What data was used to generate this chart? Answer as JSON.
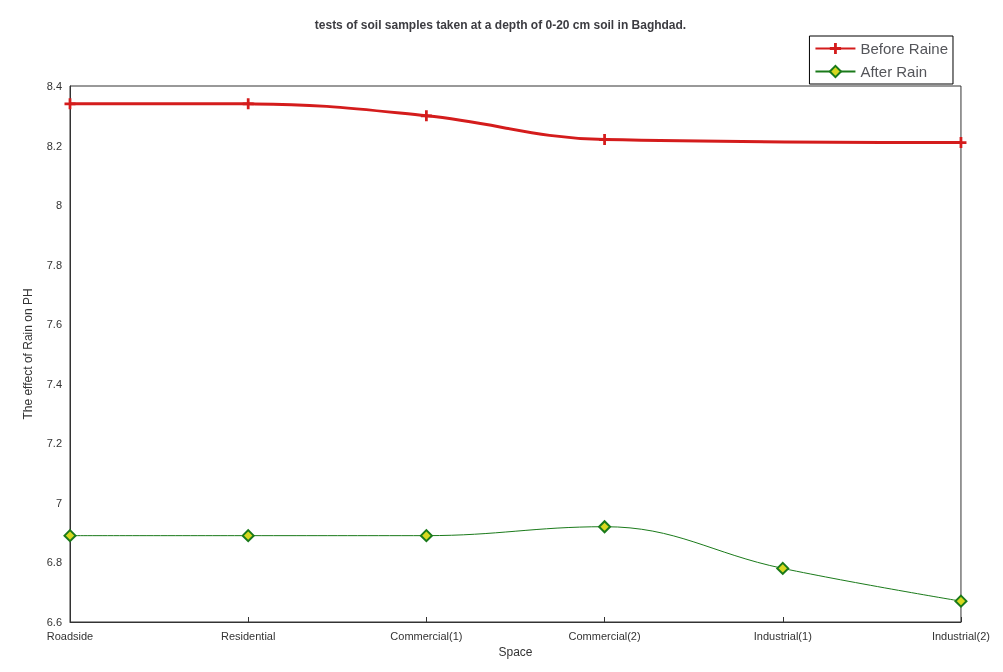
{
  "chart_data": {
    "type": "line",
    "title": "tests of soil samples taken at a depth of 0-20 cm soil in Baghdad.",
    "xlabel": "Space",
    "ylabel": "The effect of Rain on PH",
    "categories": [
      "Roadside",
      "Residential",
      "Commercial(1)",
      "Commercial(2)",
      "Industrial(1)",
      "Industrial(2)"
    ],
    "series": [
      {
        "name": "Before Raine",
        "color": "#d41c1c",
        "marker": "cross",
        "values": [
          8.34,
          8.34,
          8.3,
          8.22,
          null,
          8.21
        ]
      },
      {
        "name": "After Rain",
        "color": "#1a7a1a",
        "marker": "diamond",
        "values": [
          6.89,
          6.89,
          6.89,
          6.92,
          6.78,
          6.67
        ]
      }
    ],
    "ylim": [
      6.6,
      8.4
    ],
    "yticks": [
      6.6,
      6.8,
      7,
      7.2,
      7.4,
      7.6,
      7.8,
      8,
      8.2,
      8.4
    ],
    "grid": false,
    "legend": "top right"
  }
}
